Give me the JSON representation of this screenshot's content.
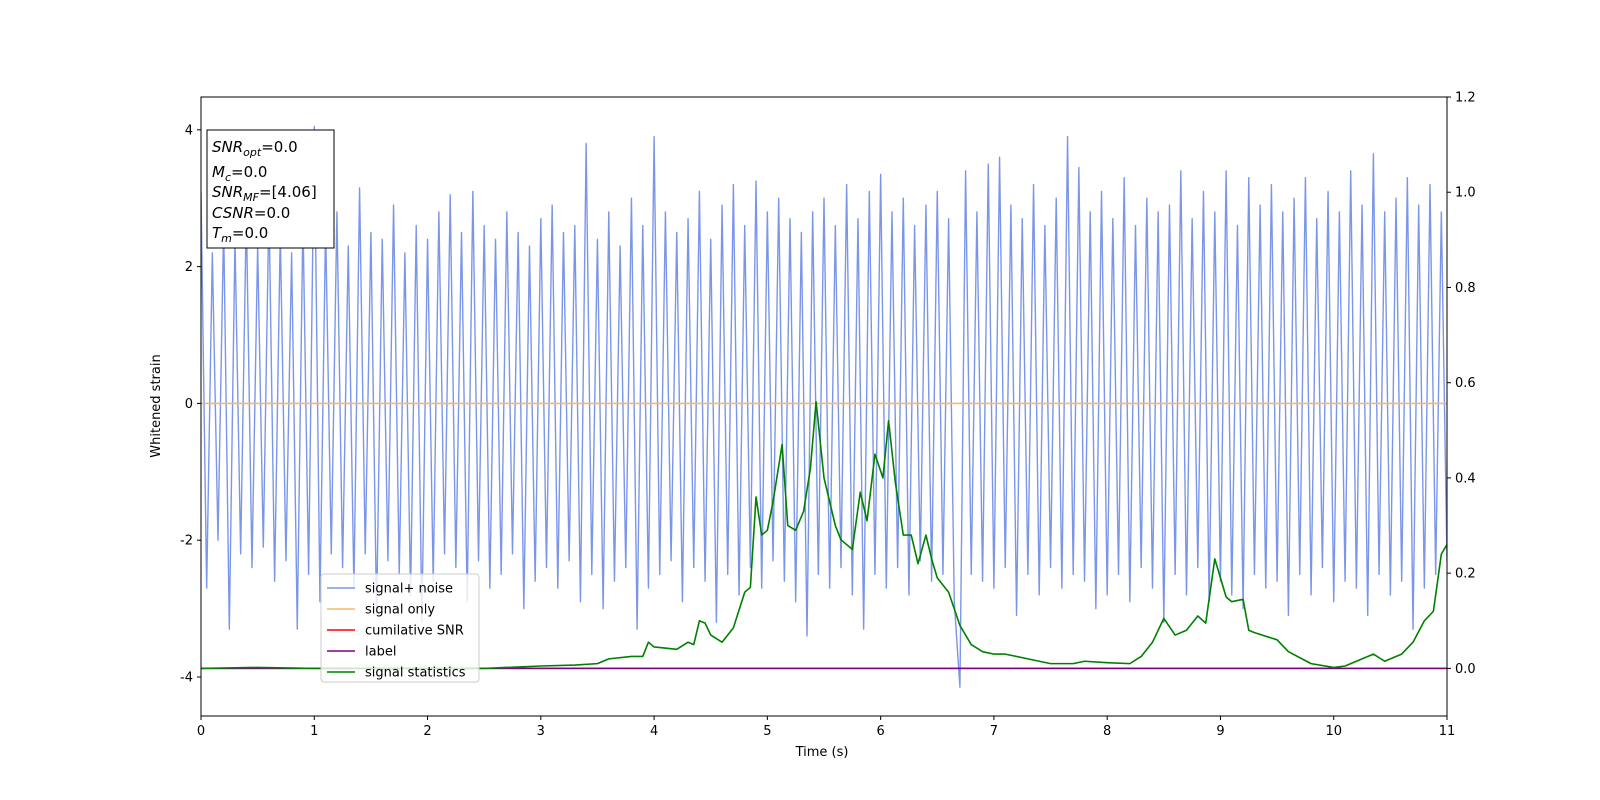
{
  "chart_data": {
    "type": "line",
    "xlabel": "Time (s)",
    "ylabel": "Whitened strain",
    "xlim": [
      0,
      11
    ],
    "xticks": [
      0,
      1,
      2,
      3,
      4,
      5,
      6,
      7,
      8,
      9,
      10,
      11
    ],
    "ylim": [
      -4.57,
      4.48
    ],
    "yticks": [
      -4,
      -2,
      0,
      2,
      4
    ],
    "y2lim": [
      -0.1,
      1.2
    ],
    "y2ticks": [
      {
        "value": 0,
        "label": "0.0"
      },
      {
        "value": 0.2,
        "label": "0.2"
      },
      {
        "value": 0.4,
        "label": "0.4"
      },
      {
        "value": 0.6,
        "label": "0.6"
      },
      {
        "value": 0.8,
        "label": "0.8"
      },
      {
        "value": 1.0,
        "label": "1.0"
      },
      {
        "value": 1.2,
        "label": "1.2"
      }
    ],
    "grid": false,
    "annotation": [
      {
        "main": "SNR",
        "sub": "opt",
        "rest": "=0.0"
      },
      {
        "main": "M",
        "sub": "c",
        "rest": "=0.0"
      },
      {
        "main": "SNR",
        "sub": "MF",
        "rest": "=[4.06]"
      },
      {
        "main": "CSNR",
        "rest": "=0.0"
      },
      {
        "main": "T",
        "sub": "m",
        "rest": "=0.0"
      }
    ],
    "series": [
      {
        "name": "signal+ noise",
        "color": "#7b96e8",
        "axis": "y",
        "x": [
          0,
          0.05,
          0.1,
          0.15,
          0.2,
          0.25,
          0.3,
          0.35,
          0.4,
          0.45,
          0.5,
          0.55,
          0.6,
          0.65,
          0.7,
          0.75,
          0.8,
          0.85,
          0.9,
          0.95,
          1,
          1.05,
          1.1,
          1.15,
          1.2,
          1.25,
          1.3,
          1.35,
          1.4,
          1.45,
          1.5,
          1.55,
          1.6,
          1.65,
          1.7,
          1.75,
          1.8,
          1.85,
          1.9,
          1.95,
          2,
          2.05,
          2.1,
          2.15,
          2.2,
          2.25,
          2.3,
          2.35,
          2.4,
          2.45,
          2.5,
          2.55,
          2.6,
          2.65,
          2.7,
          2.75,
          2.8,
          2.85,
          2.9,
          2.95,
          3,
          3.05,
          3.1,
          3.15,
          3.2,
          3.25,
          3.3,
          3.35,
          3.4,
          3.45,
          3.5,
          3.55,
          3.6,
          3.65,
          3.7,
          3.75,
          3.8,
          3.85,
          3.9,
          3.95,
          4,
          4.05,
          4.1,
          4.15,
          4.2,
          4.25,
          4.3,
          4.35,
          4.4,
          4.45,
          4.5,
          4.55,
          4.6,
          4.65,
          4.7,
          4.75,
          4.8,
          4.85,
          4.9,
          4.95,
          5,
          5.05,
          5.1,
          5.15,
          5.2,
          5.25,
          5.3,
          5.35,
          5.4,
          5.45,
          5.5,
          5.55,
          5.6,
          5.65,
          5.7,
          5.75,
          5.8,
          5.85,
          5.9,
          5.95,
          6,
          6.05,
          6.1,
          6.15,
          6.2,
          6.25,
          6.3,
          6.35,
          6.4,
          6.45,
          6.5,
          6.55,
          6.6,
          6.65,
          6.7,
          6.75,
          6.8,
          6.85,
          6.9,
          6.95,
          7,
          7.05,
          7.1,
          7.15,
          7.2,
          7.25,
          7.3,
          7.35,
          7.4,
          7.45,
          7.5,
          7.55,
          7.6,
          7.65,
          7.7,
          7.75,
          7.8,
          7.85,
          7.9,
          7.95,
          8,
          8.05,
          8.1,
          8.15,
          8.2,
          8.25,
          8.3,
          8.35,
          8.4,
          8.45,
          8.5,
          8.55,
          8.6,
          8.65,
          8.7,
          8.75,
          8.8,
          8.85,
          8.9,
          8.95,
          9,
          9.05,
          9.1,
          9.15,
          9.2,
          9.25,
          9.3,
          9.35,
          9.4,
          9.45,
          9.5,
          9.55,
          9.6,
          9.65,
          9.7,
          9.75,
          9.8,
          9.85,
          9.9,
          9.95,
          10,
          10.05,
          10.1,
          10.15,
          10.2,
          10.25,
          10.3,
          10.35,
          10.4,
          10.45,
          10.5,
          10.55,
          10.6,
          10.65,
          10.7,
          10.75,
          10.8,
          10.85,
          10.9,
          10.95,
          11
        ],
        "values": [
          3.1,
          -2.7,
          2.2,
          -2.0,
          2.6,
          -3.3,
          2.4,
          -2.2,
          2.8,
          -2.4,
          2.3,
          -2.1,
          2.9,
          -2.6,
          2.5,
          -2.3,
          2.2,
          -3.3,
          2.7,
          -2.5,
          4.05,
          -2.9,
          2.6,
          -2.2,
          2.8,
          -2.4,
          2.3,
          -2.7,
          3.15,
          -2.2,
          2.5,
          -3.1,
          2.4,
          -2.3,
          2.9,
          -2.5,
          2.2,
          -2.8,
          2.6,
          -3.2,
          2.4,
          -2.6,
          2.8,
          -2.2,
          3.05,
          -2.4,
          2.5,
          -2.9,
          3.1,
          -2.3,
          2.6,
          -2.7,
          2.4,
          -2.5,
          2.8,
          -2.2,
          2.5,
          -3.0,
          2.3,
          -2.6,
          2.7,
          -2.4,
          2.9,
          -2.7,
          2.5,
          -2.3,
          2.6,
          -2.9,
          3.8,
          -2.5,
          2.4,
          -3.0,
          2.8,
          -2.6,
          2.3,
          -2.4,
          3.0,
          -3.3,
          2.6,
          -2.7,
          3.9,
          -2.5,
          2.8,
          -2.3,
          2.5,
          -2.9,
          2.7,
          -2.4,
          3.1,
          -2.6,
          2.4,
          -3.2,
          2.9,
          -2.5,
          3.2,
          -2.8,
          2.6,
          -2.4,
          3.25,
          -2.7,
          2.8,
          -2.3,
          3.0,
          -2.6,
          2.7,
          -2.9,
          2.5,
          -3.4,
          2.8,
          -2.5,
          3.0,
          -2.7,
          2.6,
          -2.4,
          3.2,
          -2.8,
          2.7,
          -3.3,
          3.1,
          -2.5,
          3.35,
          -2.7,
          2.8,
          -2.4,
          3.0,
          -2.8,
          2.6,
          -2.3,
          2.9,
          -2.6,
          3.1,
          -2.5,
          2.7,
          -2.9,
          -4.15,
          3.4,
          -2.5,
          2.8,
          -2.6,
          3.5,
          -2.7,
          3.6,
          -2.4,
          2.9,
          -3.1,
          2.7,
          -2.5,
          3.2,
          -2.8,
          2.6,
          -2.4,
          3.0,
          -2.7,
          3.9,
          -2.5,
          3.45,
          -2.6,
          2.8,
          -3.0,
          3.1,
          -2.8,
          2.7,
          -2.5,
          3.3,
          -2.9,
          2.6,
          -2.4,
          3.0,
          -2.7,
          2.8,
          -3.2,
          2.9,
          -2.5,
          3.4,
          -2.8,
          2.7,
          -2.4,
          3.1,
          -2.9,
          2.8,
          -2.6,
          3.4,
          -2.8,
          2.6,
          -3.0,
          3.3,
          -2.5,
          2.9,
          -2.7,
          3.2,
          -2.6,
          2.8,
          -3.1,
          3.0,
          -2.5,
          3.3,
          -2.8,
          2.7,
          -2.4,
          3.1,
          -2.9,
          2.8,
          -2.6,
          3.4,
          -2.7,
          2.9,
          -3.1,
          3.65,
          -2.5,
          2.8,
          -2.8,
          3.0,
          -2.6,
          3.3,
          -3.3,
          2.9,
          -2.7,
          3.2,
          -2.5,
          2.8,
          -2.3
        ]
      },
      {
        "name": "signal only",
        "color": "#f5b96e",
        "axis": "y",
        "x": [
          0,
          11
        ],
        "values": [
          0,
          0
        ]
      },
      {
        "name": "cumilative SNR",
        "color": "#ff0000",
        "axis": "y2",
        "x": [
          0,
          11
        ],
        "values": [
          0,
          0
        ]
      },
      {
        "name": "label",
        "color": "#800080",
        "axis": "y2",
        "x": [
          0,
          11
        ],
        "values": [
          0,
          0
        ]
      },
      {
        "name": "signal statistics",
        "color": "#008000",
        "axis": "y2",
        "x": [
          0,
          0.5,
          1,
          1.5,
          2,
          2.5,
          3,
          3.3,
          3.5,
          3.6,
          3.8,
          3.9,
          3.95,
          4,
          4.2,
          4.3,
          4.35,
          4.4,
          4.45,
          4.5,
          4.6,
          4.7,
          4.8,
          4.85,
          4.9,
          4.95,
          5,
          5.05,
          5.13,
          5.18,
          5.25,
          5.32,
          5.38,
          5.43,
          5.5,
          5.6,
          5.65,
          5.75,
          5.82,
          5.88,
          5.95,
          6.02,
          6.07,
          6.13,
          6.2,
          6.27,
          6.33,
          6.4,
          6.45,
          6.5,
          6.6,
          6.7,
          6.8,
          6.9,
          7,
          7.1,
          7.3,
          7.5,
          7.7,
          7.8,
          8,
          8.2,
          8.3,
          8.4,
          8.5,
          8.6,
          8.7,
          8.8,
          8.87,
          8.95,
          9.05,
          9.1,
          9.2,
          9.25,
          9.3,
          9.5,
          9.6,
          9.8,
          10,
          10.1,
          10.2,
          10.35,
          10.45,
          10.6,
          10.7,
          10.8,
          10.88,
          10.95,
          11
        ],
        "values": [
          0,
          0.002,
          0,
          0,
          0,
          0,
          0.005,
          0.007,
          0.01,
          0.02,
          0.025,
          0.025,
          0.055,
          0.045,
          0.04,
          0.055,
          0.05,
          0.1,
          0.095,
          0.07,
          0.055,
          0.085,
          0.16,
          0.17,
          0.36,
          0.28,
          0.29,
          0.35,
          0.47,
          0.3,
          0.29,
          0.33,
          0.42,
          0.56,
          0.4,
          0.3,
          0.27,
          0.25,
          0.37,
          0.31,
          0.45,
          0.4,
          0.52,
          0.39,
          0.28,
          0.28,
          0.22,
          0.28,
          0.23,
          0.19,
          0.16,
          0.09,
          0.05,
          0.035,
          0.03,
          0.03,
          0.02,
          0.01,
          0.01,
          0.015,
          0.012,
          0.01,
          0.025,
          0.055,
          0.105,
          0.07,
          0.08,
          0.11,
          0.095,
          0.23,
          0.15,
          0.14,
          0.145,
          0.08,
          0.075,
          0.06,
          0.035,
          0.01,
          0.002,
          0.005,
          0.015,
          0.03,
          0.015,
          0.03,
          0.055,
          0.1,
          0.12,
          0.24,
          0.26
        ]
      }
    ]
  }
}
